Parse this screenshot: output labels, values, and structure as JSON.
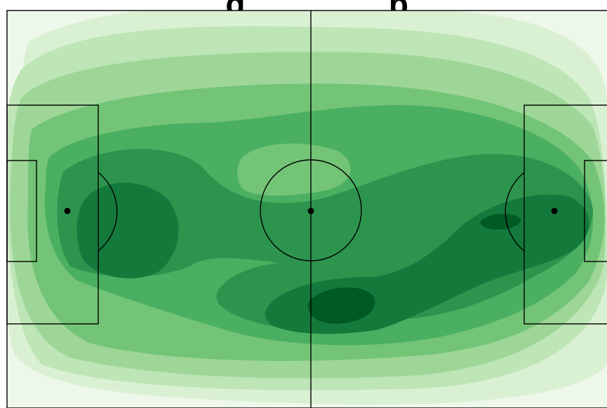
{
  "title": "...g ... ... ... ...p",
  "colors": {
    "background": "#ffffff",
    "lines": "#000000",
    "heat_levels": [
      "#eef8ea",
      "#daf0d3",
      "#bde5b5",
      "#9dd697",
      "#73c476",
      "#4aaf61",
      "#2d944e",
      "#137a3c",
      "#005a24"
    ]
  }
}
